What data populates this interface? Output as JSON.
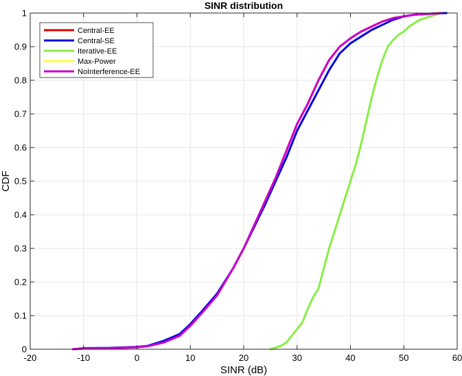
{
  "chart_data": {
    "type": "line",
    "title": "SINR distribution",
    "xlabel": "SINR (dB)",
    "ylabel": "CDF",
    "xlim": [
      -20,
      60
    ],
    "ylim": [
      0,
      1
    ],
    "xticks": [
      "-20",
      "-10",
      "0",
      "10",
      "20",
      "30",
      "40",
      "50",
      "60"
    ],
    "yticks": [
      "0",
      "0.1",
      "0.2",
      "0.3",
      "0.4",
      "0.5",
      "0.6",
      "0.7",
      "0.8",
      "0.9",
      "1"
    ],
    "grid": true,
    "legend_position": "top-left",
    "series": [
      {
        "name": "Central-EE",
        "color": "#e00000",
        "points": [
          [
            -12,
            0
          ],
          [
            -10,
            0.002
          ],
          [
            -5,
            0.003
          ],
          [
            0,
            0.006
          ],
          [
            2,
            0.009
          ],
          [
            5,
            0.02
          ],
          [
            8,
            0.04
          ],
          [
            10,
            0.07
          ],
          [
            12,
            0.105
          ],
          [
            15,
            0.16
          ],
          [
            18,
            0.24
          ],
          [
            20,
            0.3
          ],
          [
            22,
            0.37
          ],
          [
            24,
            0.44
          ],
          [
            26,
            0.51
          ],
          [
            28,
            0.59
          ],
          [
            30,
            0.67
          ],
          [
            32,
            0.73
          ],
          [
            34,
            0.8
          ],
          [
            36,
            0.86
          ],
          [
            38,
            0.9
          ],
          [
            40,
            0.925
          ],
          [
            42,
            0.945
          ],
          [
            44,
            0.96
          ],
          [
            46,
            0.975
          ],
          [
            48,
            0.985
          ],
          [
            50,
            0.99
          ],
          [
            52,
            0.995
          ],
          [
            55,
            0.998
          ],
          [
            57,
            1
          ]
        ]
      },
      {
        "name": "Central-SE",
        "color": "#0000e0",
        "points": [
          [
            -12,
            0
          ],
          [
            -10,
            0.003
          ],
          [
            -5,
            0.004
          ],
          [
            0,
            0.007
          ],
          [
            2,
            0.01
          ],
          [
            5,
            0.025
          ],
          [
            8,
            0.045
          ],
          [
            10,
            0.075
          ],
          [
            12,
            0.11
          ],
          [
            15,
            0.165
          ],
          [
            18,
            0.24
          ],
          [
            20,
            0.3
          ],
          [
            22,
            0.365
          ],
          [
            24,
            0.43
          ],
          [
            26,
            0.5
          ],
          [
            28,
            0.57
          ],
          [
            30,
            0.65
          ],
          [
            32,
            0.71
          ],
          [
            34,
            0.77
          ],
          [
            36,
            0.83
          ],
          [
            38,
            0.88
          ],
          [
            40,
            0.91
          ],
          [
            42,
            0.93
          ],
          [
            44,
            0.95
          ],
          [
            46,
            0.965
          ],
          [
            48,
            0.98
          ],
          [
            50,
            0.99
          ],
          [
            52,
            0.995
          ],
          [
            55,
            0.998
          ],
          [
            58,
            1
          ]
        ]
      },
      {
        "name": "Iterative-EE",
        "color": "#88ee44",
        "points": [
          [
            25,
            0
          ],
          [
            26,
            0.005
          ],
          [
            27,
            0.01
          ],
          [
            28,
            0.02
          ],
          [
            29,
            0.04
          ],
          [
            30,
            0.06
          ],
          [
            31,
            0.08
          ],
          [
            32,
            0.12
          ],
          [
            33,
            0.155
          ],
          [
            34,
            0.18
          ],
          [
            35,
            0.24
          ],
          [
            36,
            0.3
          ],
          [
            37,
            0.35
          ],
          [
            38,
            0.4
          ],
          [
            39,
            0.45
          ],
          [
            40,
            0.5
          ],
          [
            41,
            0.55
          ],
          [
            42,
            0.61
          ],
          [
            43,
            0.68
          ],
          [
            44,
            0.75
          ],
          [
            45,
            0.81
          ],
          [
            46,
            0.86
          ],
          [
            47,
            0.9
          ],
          [
            48,
            0.92
          ],
          [
            49,
            0.935
          ],
          [
            50,
            0.945
          ],
          [
            51,
            0.96
          ],
          [
            52,
            0.97
          ],
          [
            53,
            0.98
          ],
          [
            55,
            0.99
          ],
          [
            57,
            1
          ]
        ]
      },
      {
        "name": "Max-Power",
        "color": "#ffff33",
        "points": [
          [
            -12,
            0
          ],
          [
            -10,
            0.002
          ],
          [
            -5,
            0.003
          ],
          [
            0,
            0.006
          ],
          [
            2,
            0.009
          ],
          [
            5,
            0.02
          ],
          [
            8,
            0.04
          ],
          [
            10,
            0.07
          ],
          [
            12,
            0.105
          ],
          [
            15,
            0.16
          ],
          [
            18,
            0.24
          ],
          [
            20,
            0.3
          ],
          [
            22,
            0.37
          ],
          [
            24,
            0.44
          ],
          [
            26,
            0.51
          ],
          [
            28,
            0.59
          ],
          [
            30,
            0.67
          ],
          [
            32,
            0.73
          ],
          [
            34,
            0.8
          ],
          [
            36,
            0.86
          ],
          [
            38,
            0.9
          ],
          [
            40,
            0.925
          ],
          [
            42,
            0.945
          ],
          [
            44,
            0.96
          ],
          [
            46,
            0.975
          ],
          [
            48,
            0.985
          ],
          [
            50,
            0.99
          ],
          [
            52,
            0.995
          ],
          [
            55,
            0.998
          ],
          [
            57,
            1
          ]
        ]
      },
      {
        "name": "NoInterference-EE",
        "color": "#cc00cc",
        "points": [
          [
            -12,
            0
          ],
          [
            -10,
            0.002
          ],
          [
            -5,
            0.003
          ],
          [
            0,
            0.006
          ],
          [
            2,
            0.009
          ],
          [
            5,
            0.02
          ],
          [
            8,
            0.04
          ],
          [
            10,
            0.07
          ],
          [
            12,
            0.105
          ],
          [
            15,
            0.16
          ],
          [
            18,
            0.24
          ],
          [
            20,
            0.3
          ],
          [
            22,
            0.37
          ],
          [
            24,
            0.44
          ],
          [
            26,
            0.51
          ],
          [
            28,
            0.59
          ],
          [
            30,
            0.67
          ],
          [
            32,
            0.73
          ],
          [
            34,
            0.8
          ],
          [
            36,
            0.86
          ],
          [
            38,
            0.9
          ],
          [
            40,
            0.925
          ],
          [
            42,
            0.945
          ],
          [
            44,
            0.96
          ],
          [
            46,
            0.975
          ],
          [
            48,
            0.985
          ],
          [
            50,
            0.99
          ],
          [
            52,
            0.995
          ],
          [
            55,
            0.998
          ],
          [
            57,
            1
          ]
        ]
      }
    ]
  }
}
